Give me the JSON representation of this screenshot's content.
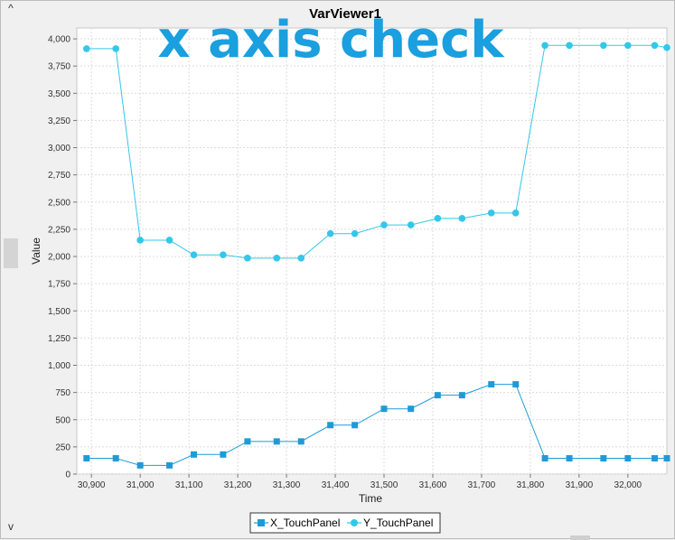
{
  "window": {
    "scroll_up_glyph": "^",
    "scroll_down_glyph": "v"
  },
  "overlay_annotation": "x axis check",
  "chart_data": {
    "type": "line",
    "title": "VarViewer1",
    "xlabel": "Time",
    "ylabel": "Value",
    "xlim": [
      30870,
      32080
    ],
    "ylim": [
      0,
      4100
    ],
    "xticks": [
      30900,
      31000,
      31100,
      31200,
      31300,
      31400,
      31500,
      31600,
      31700,
      31800,
      31900,
      32000
    ],
    "xtick_labels": [
      "30,900",
      "31,000",
      "31,100",
      "31,200",
      "31,300",
      "31,400",
      "31,500",
      "31,600",
      "31,700",
      "31,800",
      "31,900",
      "32,000"
    ],
    "yticks": [
      0,
      250,
      500,
      750,
      1000,
      1250,
      1500,
      1750,
      2000,
      2250,
      2500,
      2750,
      3000,
      3250,
      3500,
      3750,
      4000
    ],
    "ytick_labels": [
      "0",
      "250",
      "500",
      "750",
      "1,000",
      "1,250",
      "1,500",
      "1,750",
      "2,000",
      "2,250",
      "2,500",
      "2,750",
      "3,000",
      "3,250",
      "3,500",
      "3,750",
      "4,000"
    ],
    "grid": true,
    "legend_position": "bottom-center",
    "series": [
      {
        "name": "X_TouchPanel",
        "marker": "square",
        "color": "#1e9bd7",
        "points": [
          [
            30890,
            145
          ],
          [
            30950,
            145
          ],
          [
            31000,
            80
          ],
          [
            31060,
            80
          ],
          [
            31110,
            180
          ],
          [
            31170,
            180
          ],
          [
            31220,
            300
          ],
          [
            31280,
            300
          ],
          [
            31330,
            300
          ],
          [
            31390,
            450
          ],
          [
            31440,
            450
          ],
          [
            31500,
            600
          ],
          [
            31555,
            600
          ],
          [
            31610,
            725
          ],
          [
            31660,
            725
          ],
          [
            31720,
            825
          ],
          [
            31770,
            825
          ],
          [
            31830,
            145
          ],
          [
            31880,
            145
          ],
          [
            31950,
            145
          ],
          [
            32000,
            145
          ],
          [
            32055,
            145
          ],
          [
            32080,
            145
          ]
        ]
      },
      {
        "name": "Y_TouchPanel",
        "marker": "circle",
        "color": "#33c7ea",
        "points": [
          [
            30890,
            3910
          ],
          [
            30950,
            3910
          ],
          [
            31000,
            2150
          ],
          [
            31060,
            2150
          ],
          [
            31110,
            2015
          ],
          [
            31170,
            2015
          ],
          [
            31220,
            1985
          ],
          [
            31280,
            1985
          ],
          [
            31330,
            1985
          ],
          [
            31390,
            2210
          ],
          [
            31440,
            2210
          ],
          [
            31500,
            2290
          ],
          [
            31555,
            2290
          ],
          [
            31610,
            2350
          ],
          [
            31660,
            2350
          ],
          [
            31720,
            2400
          ],
          [
            31770,
            2400
          ],
          [
            31830,
            3940
          ],
          [
            31880,
            3940
          ],
          [
            31950,
            3940
          ],
          [
            32000,
            3940
          ],
          [
            32055,
            3940
          ],
          [
            32080,
            3920
          ]
        ]
      }
    ]
  }
}
